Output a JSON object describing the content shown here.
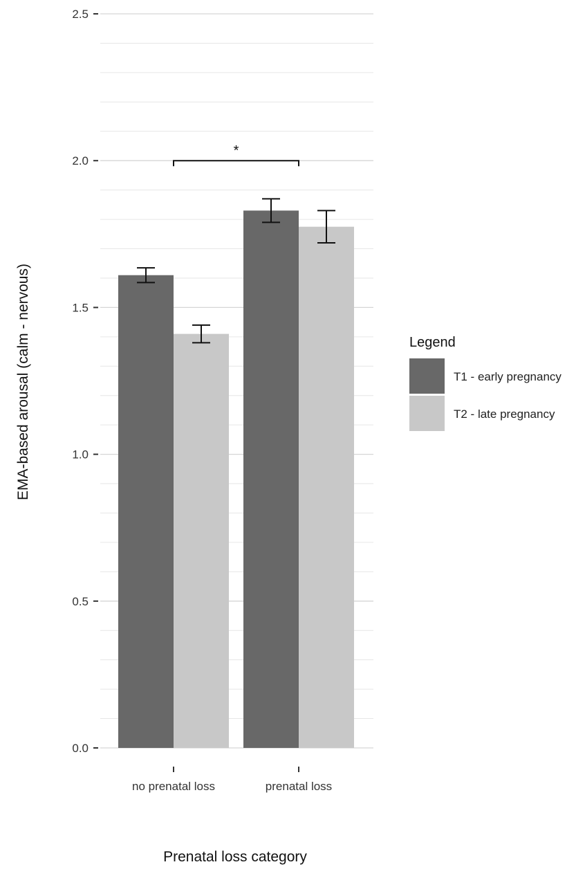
{
  "chart_data": {
    "type": "bar",
    "title": "",
    "xlabel": "Prenatal loss category",
    "ylabel": "EMA-based arousal (calm - nervous)",
    "categories": [
      "no prenatal loss",
      "prenatal loss"
    ],
    "series": [
      {
        "name": "T1 - early pregnancy",
        "color": "#686868",
        "values": [
          1.61,
          1.83
        ],
        "error": [
          0.025,
          0.04
        ]
      },
      {
        "name": "T2 - late pregnancy",
        "color": "#c8c8c8",
        "values": [
          1.41,
          1.775
        ],
        "error": [
          0.03,
          0.055
        ]
      }
    ],
    "ylim": [
      0,
      2.5
    ],
    "yticks": [
      0.0,
      0.5,
      1.0,
      1.5,
      2.0,
      2.5
    ],
    "ytick_labels": [
      "0.0",
      "0.5",
      "1.0",
      "1.5",
      "2.0",
      "2.5"
    ],
    "grid": true,
    "legend": {
      "title": "Legend",
      "position": "right"
    },
    "annotation": {
      "text": "*",
      "y": 2.0,
      "between": [
        "no prenatal loss",
        "prenatal loss"
      ]
    }
  }
}
